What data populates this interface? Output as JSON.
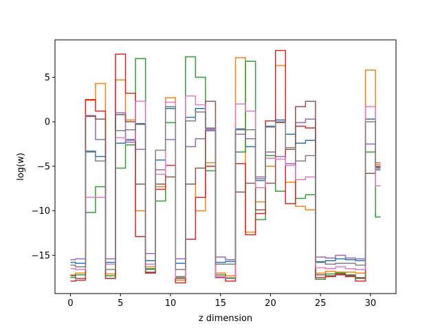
{
  "chart_data": {
    "type": "line",
    "drawstyle": "steps-mid",
    "xlabel": "z dimension",
    "ylabel": "log(w)",
    "xlim": [
      -1.55,
      32.55
    ],
    "ylim": [
      -19.3,
      9.2
    ],
    "xticks": [
      0,
      5,
      10,
      15,
      20,
      25,
      30
    ],
    "yticks": [
      -15,
      -10,
      -5,
      0,
      5
    ],
    "grid": false,
    "x": [
      0,
      1,
      2,
      3,
      4,
      5,
      6,
      7,
      8,
      9,
      10,
      11,
      12,
      13,
      14,
      15,
      16,
      17,
      18,
      19,
      20,
      21,
      22,
      23,
      24,
      25,
      26,
      27,
      28,
      29,
      30,
      31
    ],
    "series": [
      {
        "color": "#1f77b4",
        "values": [
          -15.8,
          -15.9,
          -3.3,
          -3.9,
          -15.8,
          -2.4,
          -2.0,
          -0.2,
          -15.6,
          -4.3,
          1.5,
          -15.9,
          0.5,
          1.5,
          -1.0,
          -15.8,
          -15.7,
          -0.8,
          -2.8,
          -6.6,
          -0.5,
          0.2,
          -1.4,
          -2.4,
          -2.1,
          -15.8,
          -15.6,
          -15.4,
          -15.5,
          -15.6,
          0.3,
          -5.4
        ]
      },
      {
        "color": "#ff7f0e",
        "values": [
          -17.2,
          -17.0,
          2.4,
          4.3,
          -17.1,
          4.7,
          0.2,
          -10.0,
          -16.3,
          -7.3,
          2.7,
          -17.8,
          -7.0,
          -10.0,
          -4.6,
          -17.0,
          -17.3,
          7.2,
          -12.4,
          -9.0,
          -5.0,
          6.3,
          -6.8,
          -9.5,
          -9.9,
          -17.0,
          -16.8,
          -16.9,
          -16.9,
          -17.0,
          5.8,
          -4.8
        ]
      },
      {
        "color": "#2ca02c",
        "values": [
          -17.5,
          -17.2,
          -10.2,
          -7.3,
          -17.3,
          -5.2,
          -2.6,
          7.1,
          -16.5,
          -8.9,
          -0.1,
          -17.4,
          7.3,
          5.0,
          -5.5,
          -17.2,
          -17.6,
          -3.4,
          6.8,
          -11.0,
          -3.8,
          -7.8,
          -3.1,
          -8.6,
          -8.2,
          -17.7,
          -17.1,
          -17.0,
          -17.2,
          -17.5,
          -3.4,
          -10.7
        ]
      },
      {
        "color": "#d62728",
        "values": [
          -17.9,
          -17.8,
          2.5,
          1.2,
          -17.6,
          7.6,
          3.2,
          -12.9,
          -17.0,
          -7.6,
          -4.9,
          -18.1,
          -13.2,
          -8.5,
          -5.0,
          -17.5,
          -17.9,
          -4.7,
          -12.7,
          -10.3,
          0.1,
          8.0,
          -9.2,
          -0.5,
          -0.7,
          -17.5,
          -17.4,
          -17.2,
          -17.4,
          -17.9,
          -5.8,
          -5.0
        ]
      },
      {
        "color": "#9467bd",
        "values": [
          -15.5,
          -15.4,
          0.7,
          -2.0,
          -15.4,
          1.0,
          -2.3,
          -3.1,
          -14.8,
          -5.4,
          -2.0,
          -15.4,
          -2.8,
          -1.9,
          -0.8,
          -15.2,
          -15.5,
          -1.4,
          -1.9,
          -6.2,
          -3.4,
          -3.9,
          -4.7,
          -0.1,
          0.3,
          -15.2,
          -15.3,
          -15.0,
          -15.3,
          -15.4,
          -2.5,
          -4.6
        ]
      },
      {
        "color": "#8c564b",
        "values": [
          -17.3,
          -17.6,
          0.6,
          0.3,
          -17.6,
          0.8,
          0.0,
          -7.0,
          -16.9,
          -7.0,
          -6.2,
          -17.6,
          -7.0,
          -5.2,
          2.3,
          -17.4,
          -17.5,
          -7.9,
          -6.9,
          -9.9,
          -6.9,
          -0.1,
          -3.1,
          1.7,
          2.3,
          -17.2,
          -17.3,
          -17.1,
          -17.3,
          -17.6,
          -5.8,
          -5.2
        ]
      },
      {
        "color": "#e377c2",
        "values": [
          -16.5,
          -16.6,
          -8.5,
          -8.5,
          -16.0,
          -1.8,
          -2.1,
          2.3,
          -16.0,
          -5.9,
          2.2,
          -17.5,
          2.9,
          1.9,
          -0.9,
          -17.4,
          -17.5,
          2.0,
          1.2,
          -7.4,
          -4.1,
          -4.2,
          -4.9,
          -6.5,
          -6.2,
          -16.4,
          -16.5,
          -16.3,
          -16.5,
          -16.6,
          1.7,
          -7.2
        ]
      },
      {
        "color": "#7f7f7f",
        "values": [
          -16.1,
          -16.3,
          -3.4,
          -4.4,
          -16.6,
          -1.0,
          -0.9,
          -0.3,
          -16.6,
          -3.2,
          1.7,
          -16.6,
          0.1,
          1.1,
          -0.7,
          -16.0,
          -16.0,
          -0.9,
          -0.9,
          -6.4,
          -0.6,
          0.0,
          -2.9,
          -4.4,
          -3.8,
          -15.7,
          -16.0,
          -15.9,
          -15.9,
          -16.1,
          0.0,
          -5.1
        ]
      }
    ]
  }
}
